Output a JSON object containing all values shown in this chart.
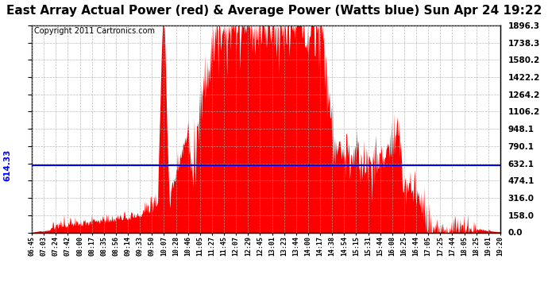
{
  "title": "East Array Actual Power (red) & Average Power (Watts blue) Sun Apr 24 19:22",
  "copyright": "Copyright 2011 Cartronics.com",
  "average_power": 614.33,
  "ymax": 1896.3,
  "yticks": [
    0.0,
    158.0,
    316.0,
    474.1,
    632.1,
    790.1,
    948.1,
    1106.2,
    1264.2,
    1422.2,
    1580.2,
    1738.3,
    1896.3
  ],
  "ytick_labels": [
    "0.0",
    "158.0",
    "316.0",
    "474.1",
    "632.1",
    "790.1",
    "948.1",
    "1106.2",
    "1264.2",
    "1422.2",
    "1580.2",
    "1738.3",
    "1896.3"
  ],
  "xtick_labels": [
    "06:45",
    "07:03",
    "07:24",
    "07:42",
    "08:00",
    "08:17",
    "08:35",
    "08:56",
    "09:14",
    "09:33",
    "09:50",
    "10:07",
    "10:28",
    "10:46",
    "11:05",
    "11:27",
    "11:45",
    "12:07",
    "12:29",
    "12:45",
    "13:01",
    "13:23",
    "13:44",
    "14:00",
    "14:17",
    "14:38",
    "14:54",
    "15:15",
    "15:31",
    "15:44",
    "16:08",
    "16:25",
    "16:44",
    "17:05",
    "17:25",
    "17:44",
    "18:05",
    "18:25",
    "19:01",
    "19:20"
  ],
  "bg_color": "#ffffff",
  "fill_color": "#ff0000",
  "line_color": "#0000ff",
  "title_fontsize": 11,
  "copyright_fontsize": 7,
  "avg_label": "614.33"
}
